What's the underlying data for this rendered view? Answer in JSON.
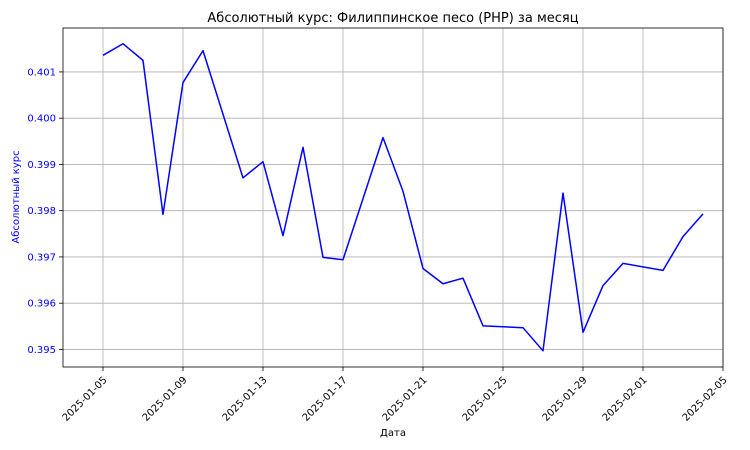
{
  "chart_data": {
    "type": "line",
    "title": "Абсолютный курс: Филиппинское песо (PHP) за месяц",
    "xlabel": "Дата",
    "ylabel": "Абсолютный курс",
    "line_color": "#0000ff",
    "ylabel_color": "#0000ff",
    "grid": true,
    "legend": "none",
    "xlim": [
      "2025-01-03",
      "2025-02-05"
    ],
    "ylim": [
      0.39462,
      0.40195
    ],
    "x_ticks": [
      "2025-01-05",
      "2025-01-09",
      "2025-01-13",
      "2025-01-17",
      "2025-01-21",
      "2025-01-25",
      "2025-01-29",
      "2025-02-01",
      "2025-02-05"
    ],
    "y_ticks": [
      "0.395",
      "0.396",
      "0.397",
      "0.398",
      "0.399",
      "0.400",
      "0.401"
    ],
    "series": [
      {
        "x": [
          "2025-01-05",
          "2025-01-06",
          "2025-01-07",
          "2025-01-08",
          "2025-01-09",
          "2025-01-10",
          "2025-01-12",
          "2025-01-13",
          "2025-01-14",
          "2025-01-15",
          "2025-01-16",
          "2025-01-17",
          "2025-01-19",
          "2025-01-20",
          "2025-01-21",
          "2025-01-22",
          "2025-01-23",
          "2025-01-24",
          "2025-01-26",
          "2025-01-27",
          "2025-01-28",
          "2025-01-29",
          "2025-01-30",
          "2025-01-31",
          "2025-02-02",
          "2025-02-03",
          "2025-02-04"
        ],
        "y": [
          0.40136,
          0.40161,
          0.40125,
          0.39792,
          0.40077,
          0.40146,
          0.39871,
          0.39906,
          0.39746,
          0.39937,
          0.39699,
          0.39694,
          0.39958,
          0.39842,
          0.39675,
          0.39642,
          0.39654,
          0.39551,
          0.39547,
          0.39497,
          0.39838,
          0.39537,
          0.39638,
          0.39686,
          0.39671,
          0.39744,
          0.39793
        ]
      }
    ]
  }
}
